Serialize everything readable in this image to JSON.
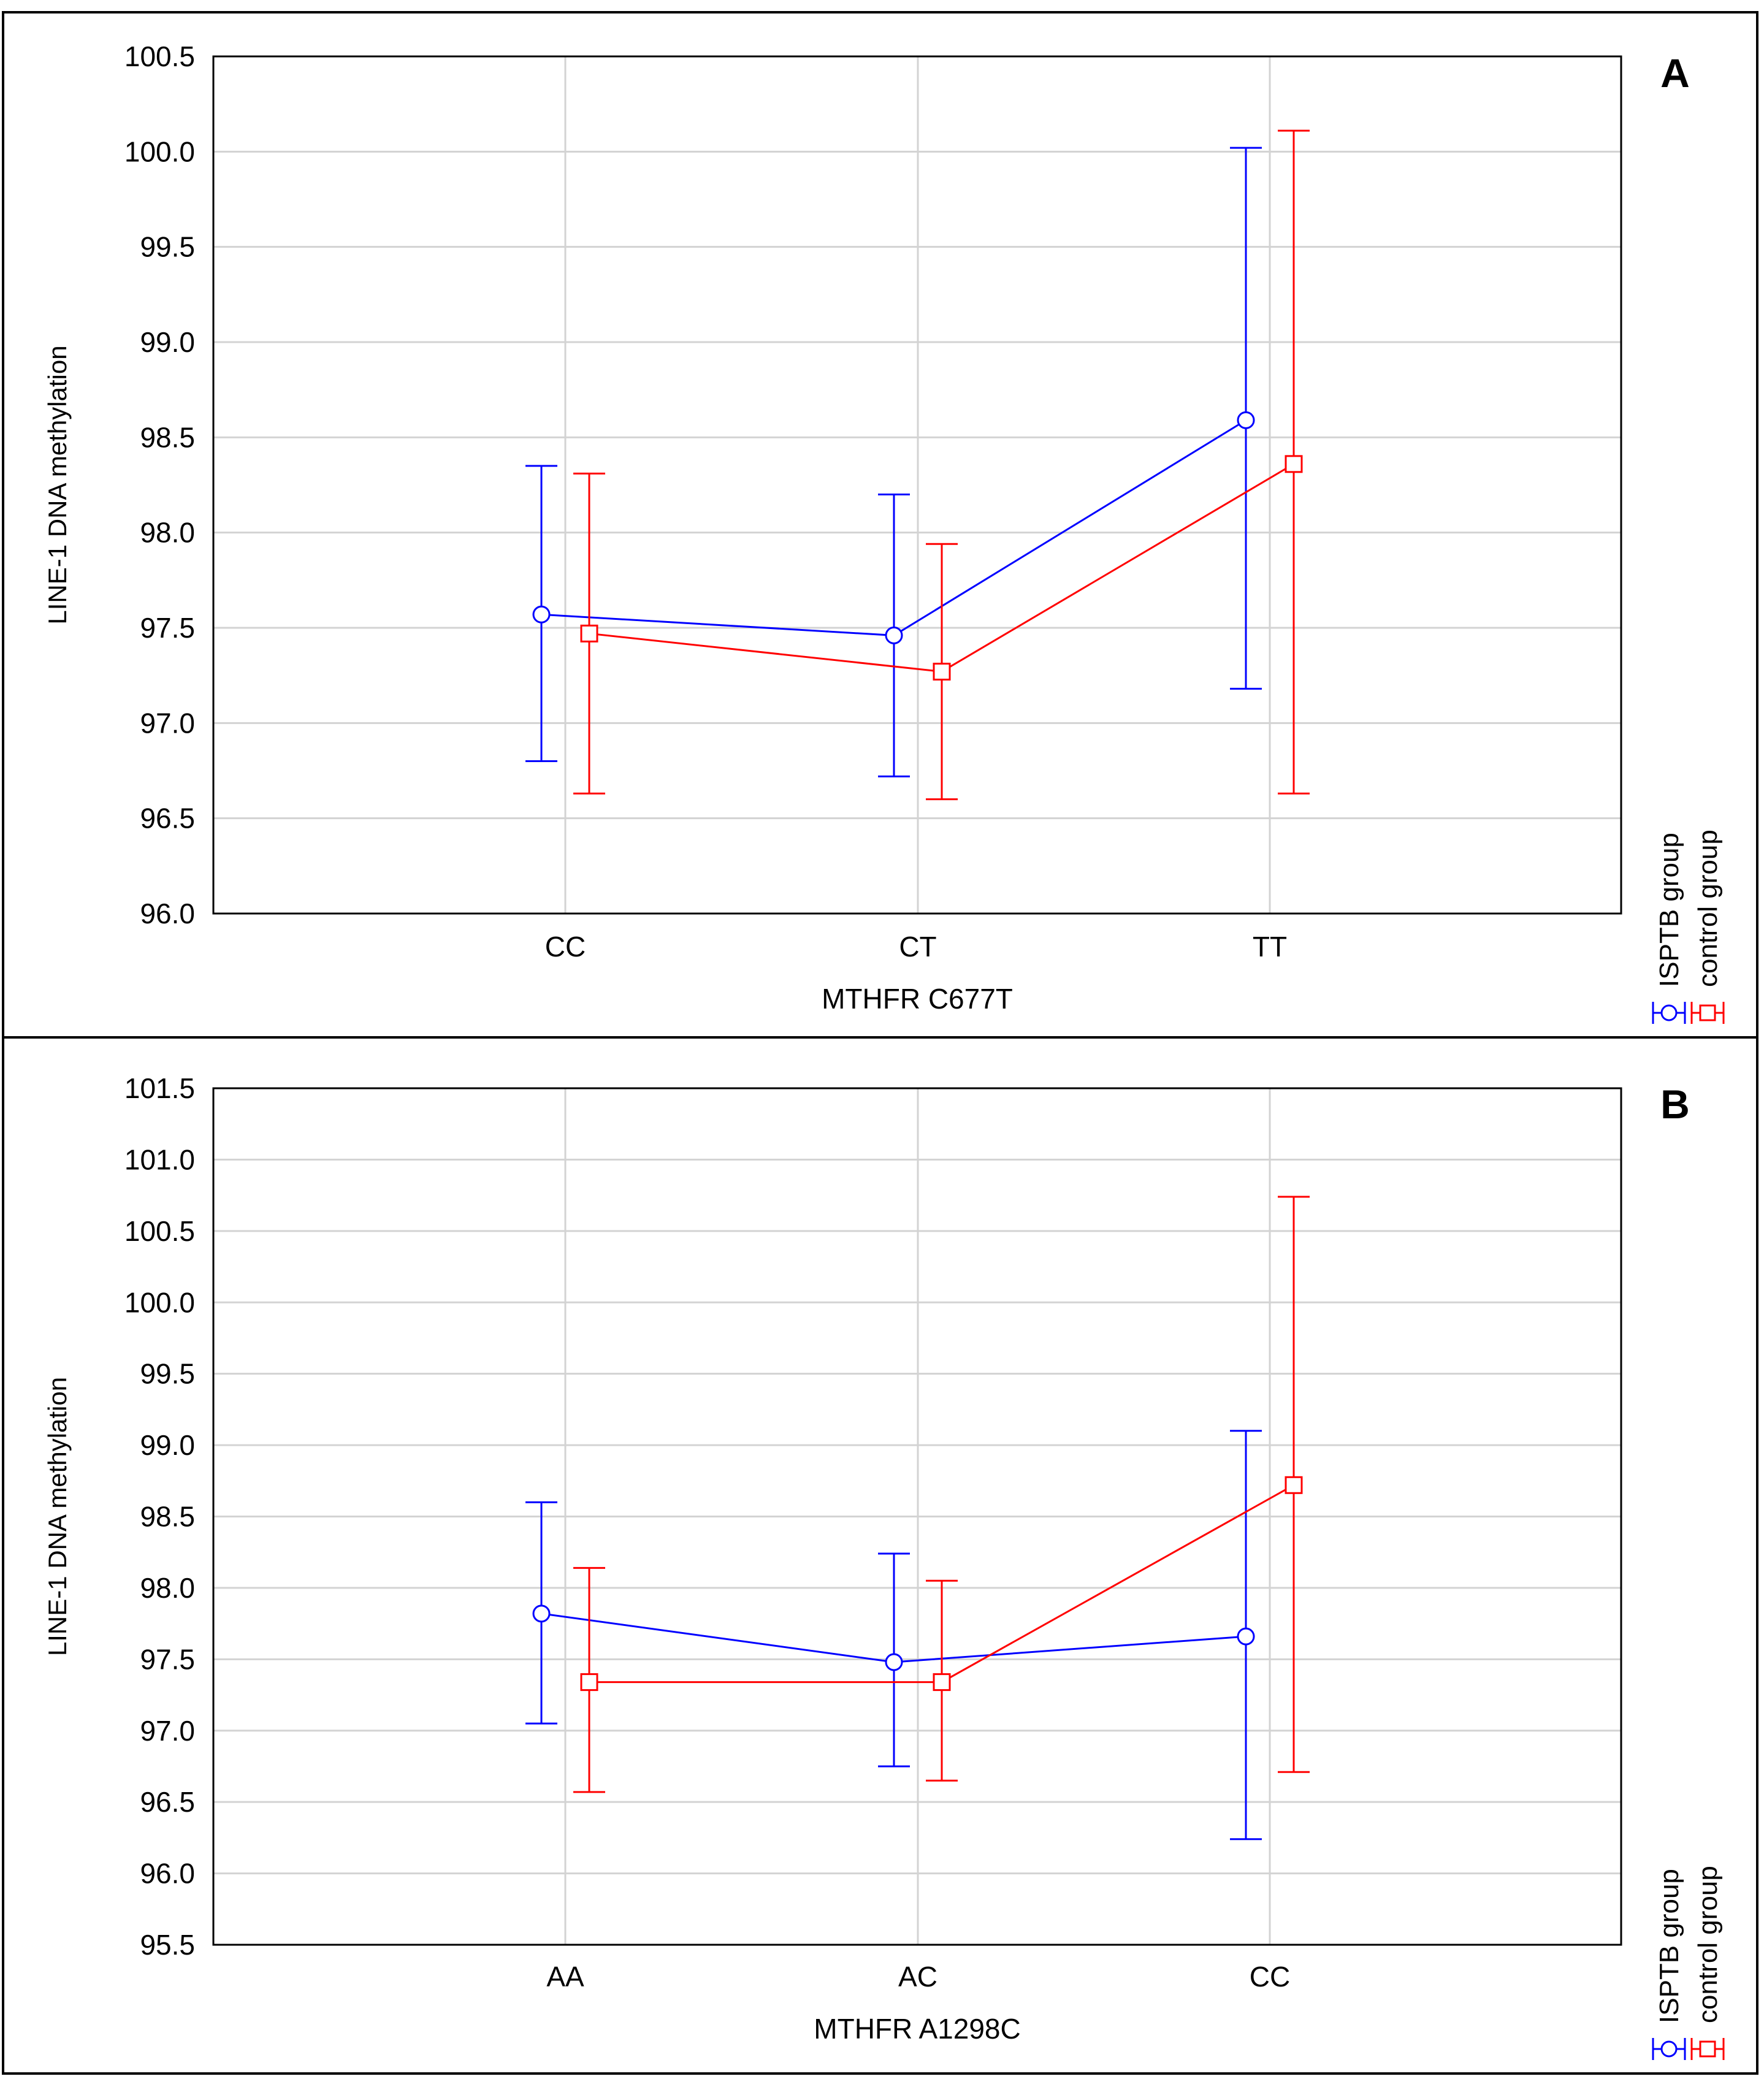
{
  "figure": {
    "colors": {
      "isptb": "#0000ff",
      "control": "#ff0000",
      "grid": "#d3d3d3",
      "axis": "#000000"
    }
  },
  "chart_data": [
    {
      "type": "line",
      "panel": "A",
      "xlabel": "MTHFR C677T",
      "ylabel": "LINE-1 DNA methylation",
      "ylim": [
        96.0,
        100.5
      ],
      "yticks": [
        96.0,
        96.5,
        97.0,
        97.5,
        98.0,
        98.5,
        99.0,
        99.5,
        100.0,
        100.5
      ],
      "ytick_labels": [
        "96.0",
        "96.5",
        "97.0",
        "97.5",
        "98.0",
        "98.5",
        "99.0",
        "99.5",
        "100.0",
        "100.5"
      ],
      "categories": [
        "CC",
        "CT",
        "TT"
      ],
      "series": [
        {
          "name": "ISPTB group",
          "marker": "circle",
          "values": [
            97.57,
            97.46,
            98.59
          ],
          "lower": [
            96.8,
            96.72,
            97.18
          ],
          "upper": [
            98.35,
            98.2,
            100.02
          ]
        },
        {
          "name": "control group",
          "marker": "square",
          "values": [
            97.47,
            97.27,
            98.36
          ],
          "lower": [
            96.63,
            96.6,
            96.63
          ],
          "upper": [
            98.31,
            97.94,
            100.11
          ]
        }
      ]
    },
    {
      "type": "line",
      "panel": "B",
      "xlabel": "MTHFR A1298C",
      "ylabel": "LINE-1 DNA methylation",
      "ylim": [
        95.5,
        101.5
      ],
      "yticks": [
        95.5,
        96.0,
        96.5,
        97.0,
        97.5,
        98.0,
        98.5,
        99.0,
        99.5,
        100.0,
        100.5,
        101.0,
        101.5
      ],
      "ytick_labels": [
        "95.5",
        "96.0",
        "96.5",
        "97.0",
        "97.5",
        "98.0",
        "98.5",
        "99.0",
        "99.5",
        "100.0",
        "100.5",
        "101.0",
        "101.5"
      ],
      "categories": [
        "AA",
        "AC",
        "CC"
      ],
      "series": [
        {
          "name": "ISPTB group",
          "marker": "circle",
          "values": [
            97.82,
            97.48,
            97.66
          ],
          "lower": [
            97.05,
            96.75,
            96.24
          ],
          "upper": [
            98.6,
            98.24,
            99.1
          ]
        },
        {
          "name": "control group",
          "marker": "square",
          "values": [
            97.34,
            97.34,
            98.72
          ],
          "lower": [
            96.57,
            96.65,
            96.71
          ],
          "upper": [
            98.14,
            98.05,
            100.74
          ]
        }
      ]
    }
  ]
}
